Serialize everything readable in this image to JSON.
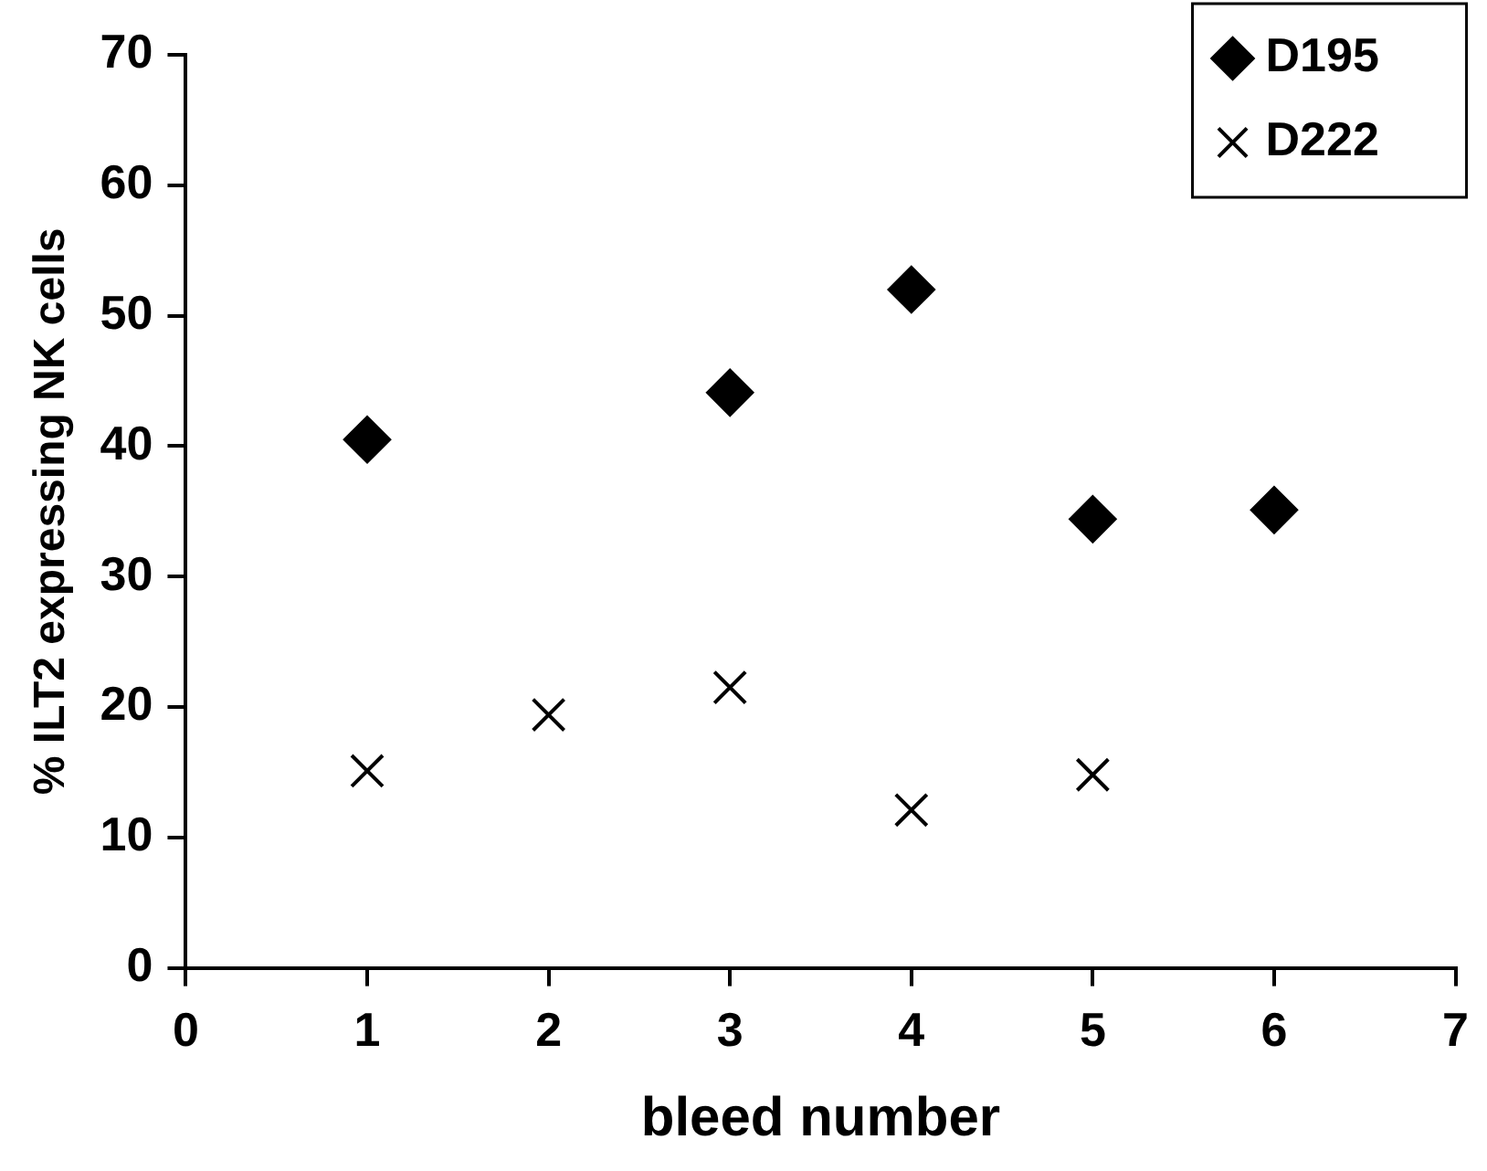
{
  "chart_data": {
    "type": "scatter",
    "xlabel": "bleed number",
    "ylabel": "% ILT2 expressing NK cells",
    "xlim": [
      0,
      7
    ],
    "xticks": [
      0,
      1,
      2,
      3,
      4,
      5,
      6,
      7
    ],
    "ylim": [
      0,
      70
    ],
    "yticks": [
      0,
      10,
      20,
      30,
      40,
      50,
      60,
      70
    ],
    "grid": false,
    "legend": "top right",
    "series": [
      {
        "name": "D195",
        "color": "#000000",
        "marker": "diamond",
        "x": [
          1,
          3,
          4,
          5,
          6
        ],
        "values": [
          40.5,
          44.1,
          52.0,
          34.4,
          35.1
        ]
      },
      {
        "name": "D222",
        "color": "#000000",
        "marker": "cross",
        "x": [
          1,
          2,
          3,
          4,
          5
        ],
        "values": [
          15.1,
          19.4,
          21.5,
          12.1,
          14.8
        ]
      }
    ]
  }
}
